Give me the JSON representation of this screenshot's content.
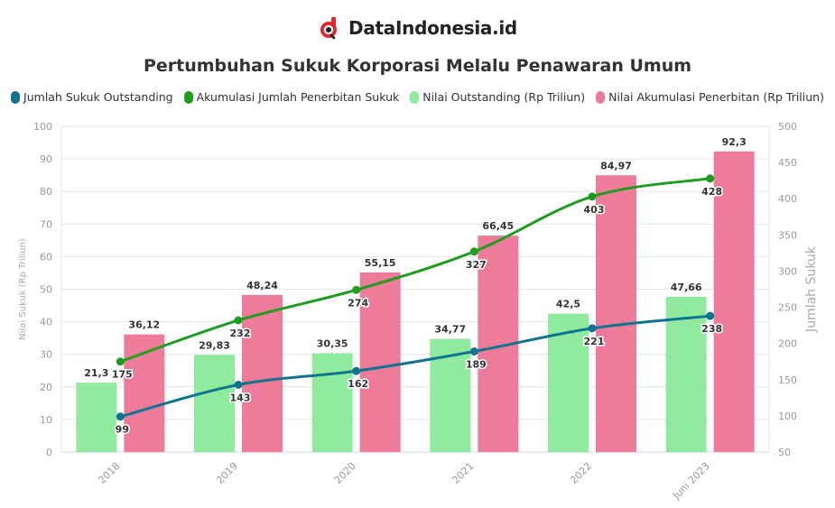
{
  "brand": {
    "name": "DataIndonesia.id",
    "logo_icon": "magnifier-d-logo-icon",
    "logo_color": "#e3242b"
  },
  "chart_data": {
    "type": "bar",
    "title": "Pertumbuhan Sukuk Korporasi Melalu Penawaran Umum",
    "categories": [
      "2018",
      "2019",
      "2020",
      "2021",
      "2022",
      "Juni 2023"
    ],
    "y_left": {
      "label": "Nilai Sukuk (Rp Triliun)",
      "min": 0,
      "max": 100,
      "step": 10
    },
    "y_right": {
      "label": "Jumlah Sukuk",
      "min": 50,
      "max": 500,
      "step": 50
    },
    "legend_position": "top",
    "grid": true,
    "series": [
      {
        "name": "Jumlah Sukuk Outstanding",
        "type": "line",
        "axis": "right",
        "color": "#0f7490",
        "values": [
          99,
          143,
          162,
          189,
          221,
          238
        ],
        "labels": [
          "99",
          "143",
          "162",
          "189",
          "221",
          "238"
        ]
      },
      {
        "name": "Akumulasi Jumlah Penerbitan Sukuk",
        "type": "line",
        "axis": "right",
        "color": "#1e9e1e",
        "values": [
          175,
          232,
          274,
          327,
          403,
          428
        ],
        "labels": [
          "175",
          "232",
          "274",
          "327",
          "403",
          "428"
        ]
      },
      {
        "name": "Nilai Outstanding (Rp Triliun)",
        "type": "bar",
        "axis": "left",
        "color": "#90ea9e",
        "values": [
          21.3,
          29.83,
          30.35,
          34.77,
          42.5,
          47.66
        ],
        "labels": [
          "21,3",
          "29,83",
          "30,35",
          "34,77",
          "42,5",
          "47,66"
        ]
      },
      {
        "name": "Nilai Akumulasi Penerbitan (Rp Triliun)",
        "type": "bar",
        "axis": "left",
        "color": "#ee7b99",
        "values": [
          36.12,
          48.24,
          55.15,
          66.45,
          84.97,
          92.3
        ],
        "labels": [
          "36,12",
          "48,24",
          "55,15",
          "66,45",
          "84,97",
          "92,3"
        ]
      }
    ]
  }
}
